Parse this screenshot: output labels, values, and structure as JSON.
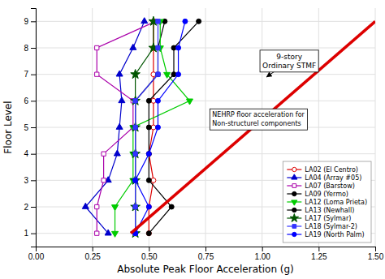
{
  "chart_data": {
    "type": "line",
    "xlabel": "Absolute Peak Floor Acceleration (g)",
    "ylabel": "Floor Level",
    "xlim": [
      0,
      1.5
    ],
    "ylim": [
      0.5,
      9.5
    ],
    "xticks": [
      {
        "value": 0,
        "label": "0.00"
      },
      {
        "value": 0.25,
        "label": "0.25"
      },
      {
        "value": 0.5,
        "label": "0.50"
      },
      {
        "value": 0.75,
        "label": "0.75"
      },
      {
        "value": 1,
        "label": "1.00"
      },
      {
        "value": 1.25,
        "label": "1.25"
      },
      {
        "value": 1.5,
        "label": "1.50"
      }
    ],
    "yticks": [
      1,
      2,
      3,
      4,
      5,
      6,
      7,
      8,
      9
    ],
    "grid": true,
    "legend": "lower right",
    "series": [
      {
        "name": "LA02 (El Centro)",
        "color": "#dd0000",
        "marker": "circle-open",
        "x": [
          0.5,
          0.5,
          0.52,
          0.5,
          0.52,
          0.52,
          0.52,
          0.52,
          0.52
        ],
        "values": [
          1,
          2,
          3,
          4,
          5,
          6,
          7,
          8,
          9
        ]
      },
      {
        "name": "LA04 (Array #05)",
        "color": "#0000cc",
        "marker": "triangle-up",
        "x": [
          0.32,
          0.22,
          0.32,
          0.36,
          0.37,
          0.38,
          0.37,
          0.43,
          0.48
        ],
        "values": [
          1,
          2,
          3,
          4,
          5,
          6,
          7,
          8,
          9
        ]
      },
      {
        "name": "LA07 (Barstow)",
        "color": "#aa00aa",
        "marker": "square-open",
        "x": [
          0.27,
          0.27,
          0.3,
          0.3,
          0.43,
          0.43,
          0.27,
          0.27,
          0.53
        ],
        "values": [
          1,
          2,
          3,
          4,
          5,
          6,
          7,
          8,
          9
        ]
      },
      {
        "name": "LA09 (Yermo)",
        "color": "#000000",
        "marker": "circle",
        "x": [
          0.44,
          0.44,
          0.44,
          0.44,
          0.44,
          0.44,
          0.54,
          0.54,
          0.57
        ],
        "values": [
          1,
          2,
          3,
          4,
          5,
          6,
          7,
          8,
          9
        ]
      },
      {
        "name": "LA12 (Loma Prieta)",
        "color": "#00cc00",
        "marker": "triangle-down",
        "x": [
          0.35,
          0.35,
          0.43,
          0.43,
          0.43,
          0.68,
          0.58,
          0.55,
          0.55
        ],
        "values": [
          1,
          2,
          3,
          4,
          5,
          6,
          7,
          8,
          9
        ]
      },
      {
        "name": "LA13 (Newhall)",
        "color": "#000000",
        "marker": "circle",
        "x": [
          0.5,
          0.6,
          0.5,
          0.5,
          0.5,
          0.5,
          0.61,
          0.61,
          0.72
        ],
        "values": [
          1,
          2,
          3,
          4,
          5,
          6,
          7,
          8,
          9
        ]
      },
      {
        "name": "LA17 (Sylmar)",
        "color": "#005500",
        "marker": "star",
        "x": [
          0.44,
          0.44,
          0.44,
          0.44,
          0.44,
          0.44,
          0.44,
          0.52,
          0.52
        ],
        "values": [
          1,
          2,
          3,
          4,
          5,
          6,
          7,
          8,
          9
        ]
      },
      {
        "name": "LA18 (Sylmar-2)",
        "color": "#3333ff",
        "marker": "square",
        "x": [
          0.44,
          0.44,
          0.44,
          0.44,
          0.44,
          0.44,
          0.54,
          0.54,
          0.54
        ],
        "values": [
          1,
          2,
          3,
          4,
          5,
          6,
          7,
          8,
          9
        ]
      },
      {
        "name": "LA19 (North Palm)",
        "color": "#0000ff",
        "marker": "circle",
        "x": [
          0.44,
          0.5,
          0.44,
          0.5,
          0.54,
          0.54,
          0.63,
          0.63,
          0.66
        ],
        "values": [
          1,
          2,
          3,
          4,
          5,
          6,
          7,
          8,
          9
        ]
      },
      {
        "color": "#dd0000",
        "x": [
          0.42,
          1.5
        ],
        "values": [
          1,
          9
        ]
      }
    ],
    "annotations": [
      {
        "text": "9-story\nOrdinary STMF",
        "x": 1.12,
        "y": 7.5,
        "arrow_x": 1.02,
        "arrow_y": 6.9
      },
      {
        "text": "NEHRP floor acceleration for\nNon-structurel components",
        "x": 0.78,
        "y": 5.3
      }
    ]
  }
}
